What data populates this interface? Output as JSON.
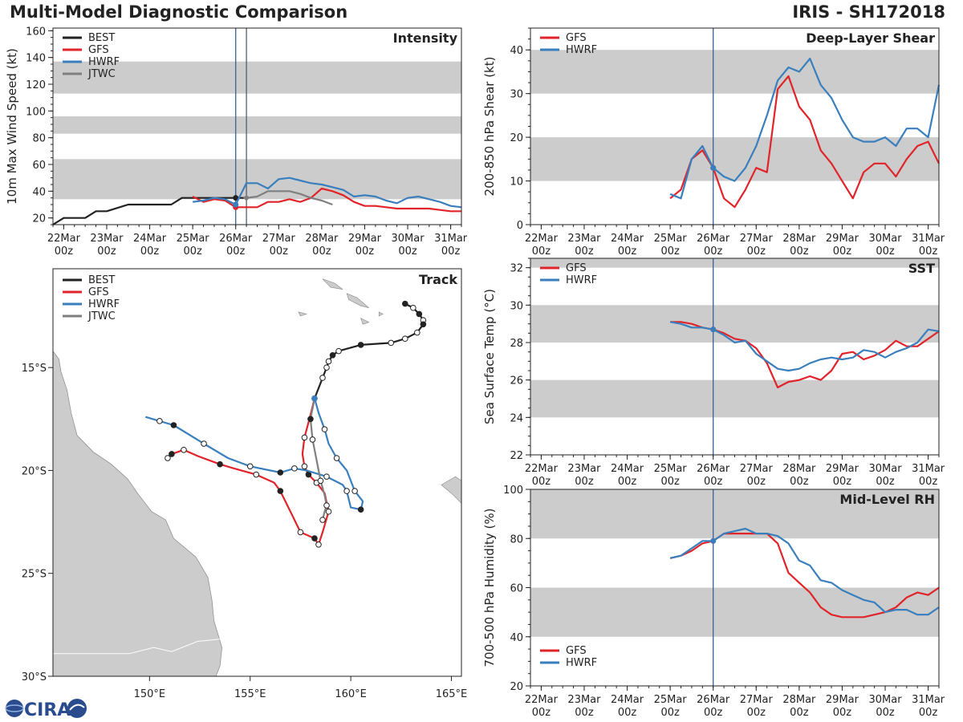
{
  "header": {
    "title": "Multi-Model Diagnostic Comparison",
    "storm": "IRIS - SH172018"
  },
  "logo": {
    "text": "CIRA"
  },
  "colors": {
    "BEST": "#222222",
    "GFS": "#e0242a",
    "HWRF": "#3a7fbd",
    "JTWC": "#7f7f7f",
    "band": "#cccccc",
    "vline": "#3b5f96"
  },
  "time_ticks": {
    "days": [
      "22Mar",
      "23Mar",
      "24Mar",
      "25Mar",
      "26Mar",
      "27Mar",
      "28Mar",
      "29Mar",
      "30Mar",
      "31Mar"
    ],
    "hour": "00z"
  },
  "chart_data": [
    {
      "id": "intensity",
      "type": "line",
      "title": "Intensity",
      "ylabel": "10m Max Wind Speed (kt)",
      "xlim": [
        -4.25,
        5.25
      ],
      "ylim": [
        15,
        162
      ],
      "yticks": [
        20,
        40,
        60,
        80,
        100,
        120,
        140,
        160
      ],
      "bands": [
        [
          34,
          64
        ],
        [
          83,
          96
        ],
        [
          113,
          137
        ]
      ],
      "vlines": [
        0,
        0.25
      ],
      "legend": [
        "BEST",
        "GFS",
        "HWRF",
        "JTWC"
      ],
      "series": [
        {
          "name": "BEST",
          "x": [
            -4.25,
            -4,
            -3.5,
            -3.25,
            -3,
            -2.5,
            -2,
            -1.5,
            -1.25,
            -1,
            -0.5,
            0,
            0.25
          ],
          "y": [
            15,
            20,
            20,
            25,
            25,
            30,
            30,
            30,
            35,
            35,
            35,
            35,
            35
          ]
        },
        {
          "name": "GFS",
          "x": [
            -1,
            -0.75,
            -0.5,
            -0.25,
            0,
            0.25,
            0.5,
            0.75,
            1,
            1.25,
            1.5,
            1.75,
            2,
            2.25,
            2.5,
            2.75,
            3,
            3.25,
            3.5,
            3.75,
            4,
            4.5,
            4.75,
            5,
            5.25
          ],
          "y": [
            36,
            32,
            34,
            33,
            28,
            28,
            28,
            32,
            32,
            34,
            32,
            35,
            42,
            40,
            37,
            32,
            29,
            29,
            28,
            27,
            27,
            27,
            26,
            25,
            25
          ]
        },
        {
          "name": "HWRF",
          "x": [
            -1,
            -0.75,
            -0.5,
            -0.25,
            0,
            0.25,
            0.5,
            0.75,
            1,
            1.25,
            1.5,
            1.75,
            2,
            2.25,
            2.5,
            2.75,
            3,
            3.25,
            3.5,
            3.75,
            4,
            4.25,
            4.5,
            4.75,
            5,
            5.25
          ],
          "y": [
            32,
            33,
            35,
            34,
            30,
            46,
            46,
            42,
            49,
            50,
            48,
            46,
            45,
            43,
            41,
            36,
            37,
            36,
            33,
            31,
            35,
            36,
            34,
            32,
            29,
            28
          ]
        },
        {
          "name": "JTWC",
          "x": [
            0.25,
            0.5,
            0.75,
            1,
            1.25,
            1.5,
            1.75,
            2,
            2.25
          ],
          "y": [
            35,
            36,
            40,
            40,
            40,
            38,
            35,
            33,
            30
          ]
        }
      ]
    },
    {
      "id": "shear",
      "type": "line",
      "title": "Deep-Layer Shear",
      "ylabel": "200-850 hPa Shear (kt)",
      "xlim": [
        -4.25,
        5.25
      ],
      "ylim": [
        0,
        45
      ],
      "yticks": [
        0,
        10,
        20,
        30,
        40
      ],
      "bands": [
        [
          10,
          20
        ],
        [
          30,
          40
        ]
      ],
      "vlines": [
        0
      ],
      "legend": [
        "GFS",
        "HWRF"
      ],
      "series": [
        {
          "name": "GFS",
          "x": [
            -1,
            -0.75,
            -0.5,
            -0.25,
            0,
            0.25,
            0.5,
            0.75,
            1,
            1.25,
            1.5,
            1.75,
            2,
            2.25,
            2.5,
            2.75,
            3,
            3.25,
            3.5,
            3.75,
            4,
            4.25,
            4.5,
            4.75,
            5,
            5.25
          ],
          "y": [
            6,
            8,
            15,
            17,
            13,
            6,
            4,
            8,
            13,
            12,
            31,
            34,
            27,
            24,
            17,
            14,
            10,
            6,
            12,
            14,
            14,
            11,
            15,
            18,
            19,
            14
          ]
        },
        {
          "name": "HWRF",
          "x": [
            -1,
            -0.75,
            -0.5,
            -0.25,
            0,
            0.25,
            0.5,
            0.75,
            1,
            1.25,
            1.5,
            1.75,
            2,
            2.25,
            2.5,
            2.75,
            3,
            3.25,
            3.5,
            3.75,
            4,
            4.25,
            4.5,
            4.75,
            5,
            5.25
          ],
          "y": [
            7,
            6,
            15,
            18,
            13,
            11,
            10,
            13,
            18,
            25,
            33,
            36,
            35,
            38,
            32,
            29,
            24,
            20,
            19,
            19,
            20,
            18,
            22,
            22,
            20,
            32
          ]
        }
      ]
    },
    {
      "id": "sst",
      "type": "line",
      "title": "SST",
      "ylabel": "Sea Surface Temp (°C)",
      "xlim": [
        -4.25,
        5.25
      ],
      "ylim": [
        22,
        32.5
      ],
      "yticks": [
        22,
        24,
        26,
        28,
        30,
        32
      ],
      "bands": [
        [
          24,
          26
        ],
        [
          28,
          30
        ],
        [
          32,
          33
        ]
      ],
      "vlines": [
        0
      ],
      "legend": [
        "GFS",
        "HWRF"
      ],
      "series": [
        {
          "name": "GFS",
          "x": [
            -1,
            -0.75,
            -0.5,
            -0.25,
            0,
            0.25,
            0.5,
            0.75,
            1,
            1.25,
            1.5,
            1.75,
            2,
            2.25,
            2.5,
            2.75,
            3,
            3.25,
            3.5,
            3.75,
            4,
            4.25,
            4.5,
            4.75,
            5,
            5.25
          ],
          "y": [
            29.1,
            29.1,
            29.0,
            28.8,
            28.7,
            28.5,
            28.2,
            28.1,
            27.7,
            26.9,
            25.6,
            25.9,
            26.0,
            26.2,
            26.0,
            26.5,
            27.4,
            27.5,
            27.1,
            27.3,
            27.6,
            28.1,
            27.8,
            27.8,
            28.2,
            28.6
          ]
        },
        {
          "name": "HWRF",
          "x": [
            -1,
            -0.75,
            -0.5,
            -0.25,
            0,
            0.25,
            0.5,
            0.75,
            1,
            1.25,
            1.5,
            1.75,
            2,
            2.25,
            2.5,
            2.75,
            3,
            3.25,
            3.5,
            3.75,
            4,
            4.25,
            4.5,
            4.75,
            5,
            5.25
          ],
          "y": [
            29.1,
            29.0,
            28.8,
            28.8,
            28.7,
            28.4,
            28.0,
            28.1,
            27.4,
            27.0,
            26.6,
            26.5,
            26.6,
            26.9,
            27.1,
            27.2,
            27.1,
            27.2,
            27.6,
            27.5,
            27.2,
            27.5,
            27.7,
            28.0,
            28.7,
            28.6
          ]
        }
      ]
    },
    {
      "id": "rh",
      "type": "line",
      "title": "Mid-Level RH",
      "ylabel": "700-500 hPa Humidity (%)",
      "xlim": [
        -4.25,
        5.25
      ],
      "ylim": [
        20,
        100
      ],
      "yticks": [
        20,
        40,
        60,
        80,
        100
      ],
      "bands": [
        [
          40,
          60
        ],
        [
          80,
          100
        ]
      ],
      "vlines": [
        0
      ],
      "legend": [
        "GFS",
        "HWRF"
      ],
      "series": [
        {
          "name": "GFS",
          "x": [
            -1,
            -0.75,
            -0.5,
            -0.25,
            0,
            0.25,
            0.5,
            0.75,
            1,
            1.25,
            1.5,
            1.75,
            2,
            2.25,
            2.5,
            2.75,
            3,
            3.25,
            3.5,
            3.75,
            4,
            4.25,
            4.5,
            4.75,
            5,
            5.25
          ],
          "y": [
            72,
            73,
            75,
            78,
            79,
            82,
            82,
            82,
            82,
            82,
            78,
            66,
            62,
            58,
            52,
            49,
            48,
            48,
            48,
            49,
            50,
            52,
            56,
            58,
            57,
            60
          ]
        },
        {
          "name": "HWRF",
          "x": [
            -1,
            -0.75,
            -0.5,
            -0.25,
            0,
            0.25,
            0.5,
            0.75,
            1,
            1.25,
            1.5,
            1.75,
            2,
            2.25,
            2.5,
            2.75,
            3,
            3.25,
            3.5,
            3.75,
            4,
            4.25,
            4.5,
            4.75,
            5,
            5.25
          ],
          "y": [
            72,
            73,
            76,
            79,
            79,
            82,
            83,
            84,
            82,
            82,
            81,
            78,
            71,
            69,
            63,
            62,
            59,
            57,
            55,
            54,
            50,
            51,
            51,
            49,
            49,
            52
          ]
        }
      ]
    },
    {
      "id": "track",
      "type": "scatter",
      "title": "Track",
      "xlim": [
        145.2,
        165.5
      ],
      "ylim": [
        -30,
        -10.2
      ],
      "xticks": [
        150,
        155,
        160,
        165
      ],
      "xtick_labels": [
        "150°E",
        "155°E",
        "160°E",
        "165°E"
      ],
      "yticks": [
        -15,
        -20,
        -25,
        -30
      ],
      "ytick_labels": [
        "15°S",
        "20°S",
        "25°S",
        "30°S"
      ],
      "legend": [
        "BEST",
        "GFS",
        "HWRF",
        "JTWC"
      ],
      "series": [
        {
          "name": "BEST",
          "lon": [
            162.7,
            163.1,
            163.4,
            163.6,
            163.6,
            163.3,
            162.7,
            162.0,
            160.5,
            159.4,
            159.1,
            158.9,
            158.8,
            158.6,
            158.2
          ],
          "lat": [
            -11.9,
            -12.1,
            -12.4,
            -12.7,
            -12.9,
            -13.3,
            -13.6,
            -13.8,
            -13.9,
            -14.2,
            -14.4,
            -14.7,
            -15.0,
            -15.5,
            -16.5
          ],
          "filled": [
            true,
            false,
            true,
            false,
            true,
            false,
            false,
            false,
            true,
            false,
            true,
            false,
            false,
            false,
            true
          ]
        },
        {
          "name": "GFS",
          "lon": [
            158.2,
            158.0,
            157.7,
            157.6,
            157.7,
            157.9,
            158.3,
            158.7,
            158.9,
            158.6,
            158.4,
            158.2,
            157.5,
            157.0,
            156.5,
            156.2,
            155.3,
            154.2,
            153.5,
            152.4,
            151.7,
            151.1,
            150.9
          ],
          "lat": [
            -16.5,
            -17.3,
            -18.4,
            -19.2,
            -19.8,
            -20.2,
            -20.6,
            -21.1,
            -22.0,
            -23.0,
            -23.6,
            -23.3,
            -23.0,
            -22.0,
            -21.0,
            -20.6,
            -20.2,
            -19.9,
            -19.7,
            -19.3,
            -19.0,
            -19.2,
            -19.4
          ],
          "filled": [
            true,
            false,
            false,
            false,
            false,
            true,
            false,
            false,
            false,
            false,
            false,
            true,
            false,
            false,
            true,
            false,
            false,
            false,
            true,
            false,
            false,
            true,
            false
          ]
        },
        {
          "name": "HWRF",
          "lon": [
            158.2,
            158.4,
            158.7,
            158.9,
            159.3,
            159.8,
            160.2,
            160.6,
            160.5,
            160.0,
            159.8,
            159.6,
            158.8,
            157.8,
            157.2,
            156.5,
            155.0,
            153.9,
            152.7,
            151.2,
            150.5,
            149.8
          ],
          "lat": [
            -16.5,
            -17.2,
            -18.0,
            -18.7,
            -19.4,
            -20.0,
            -21.0,
            -21.5,
            -21.9,
            -21.8,
            -21.0,
            -20.7,
            -20.3,
            -20.0,
            -19.9,
            -20.1,
            -19.8,
            -19.4,
            -18.7,
            -17.8,
            -17.6,
            -17.4
          ],
          "filled": [
            true,
            false,
            false,
            false,
            false,
            false,
            false,
            false,
            true,
            false,
            false,
            false,
            false,
            false,
            false,
            true,
            false,
            false,
            false,
            true,
            false,
            false
          ]
        },
        {
          "name": "JTWC",
          "lon": [
            158.2,
            158.0,
            158.1,
            158.3,
            158.5,
            158.7,
            158.8,
            158.7,
            158.6
          ],
          "lat": [
            -16.5,
            -17.5,
            -18.5,
            -19.5,
            -20.5,
            -21.2,
            -21.7,
            -22.0,
            -22.4
          ],
          "filled": [
            true,
            true,
            false,
            false,
            false,
            false,
            false,
            false,
            false
          ]
        }
      ]
    }
  ]
}
